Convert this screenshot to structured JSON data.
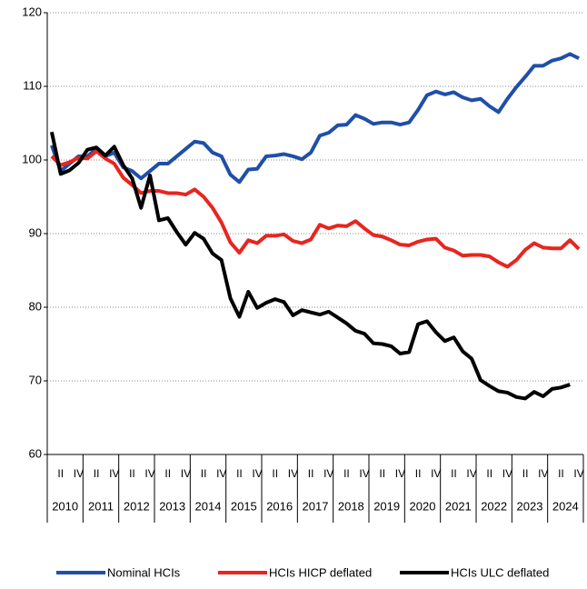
{
  "chart_data": {
    "type": "line",
    "categories": [
      null,
      "II",
      null,
      "IV",
      null,
      "II",
      null,
      "IV",
      null,
      "II",
      null,
      "IV",
      null,
      "II",
      null,
      "IV",
      null,
      "II",
      null,
      "IV",
      null,
      "II",
      null,
      "IV",
      null,
      "II",
      null,
      "IV",
      null,
      "II",
      null,
      "IV",
      null,
      "II",
      null,
      "IV",
      null,
      "II",
      null,
      "IV",
      null,
      "II",
      null,
      "IV",
      null,
      "II",
      null,
      "IV",
      null,
      "II",
      null,
      "IV",
      null,
      "II",
      null,
      "IV",
      null,
      "II",
      null,
      "IV"
    ],
    "years": [
      "2010",
      "2011",
      "2012",
      "2013",
      "2014",
      "2015",
      "2016",
      "2017",
      "2018",
      "2019",
      "2020",
      "2021",
      "2022",
      "2023",
      "2024"
    ],
    "series": [
      {
        "name": "Nominal HCIs",
        "color": "#1f4fa8",
        "values": [
          102,
          98.5,
          99.5,
          100.5,
          100.5,
          101.5,
          100.5,
          101,
          99,
          98.5,
          97.5,
          98.5,
          99.5,
          99.5,
          100.5,
          101.5,
          102.5,
          102.3,
          101,
          100.5,
          98,
          97,
          98.7,
          98.8,
          100.5,
          100.6,
          100.8,
          100.5,
          100.1,
          101,
          103.3,
          103.7,
          104.7,
          104.8,
          106.1,
          105.6,
          104.9,
          105.1,
          105.1,
          104.8,
          105.1,
          106.8,
          108.8,
          109.3,
          108.9,
          109.2,
          108.5,
          108.1,
          108.3,
          107.3,
          106.5,
          108.3,
          109.9,
          111.3,
          112.8,
          112.8,
          113.5,
          113.8,
          114.4,
          113.8
        ]
      },
      {
        "name": "HCIs HICP deflated",
        "color": "#e8251f",
        "values": [
          100.5,
          99.3,
          99.7,
          100.3,
          100.2,
          101.2,
          100.2,
          99.5,
          97.6,
          96.6,
          95.5,
          95.8,
          95.8,
          95.5,
          95.5,
          95.3,
          96,
          95,
          93.5,
          91.5,
          88.8,
          87.4,
          89.1,
          88.7,
          89.7,
          89.7,
          89.9,
          89,
          88.7,
          89.2,
          91.2,
          90.7,
          91.1,
          91,
          91.7,
          90.7,
          89.8,
          89.6,
          89.1,
          88.5,
          88.4,
          88.9,
          89.2,
          89.3,
          88.1,
          87.7,
          87,
          87.1,
          87.1,
          86.9,
          86.1,
          85.5,
          86.4,
          87.8,
          88.7,
          88.1,
          88,
          88,
          89.1,
          87.9
        ]
      },
      {
        "name": "HCIs ULC deflated",
        "color": "#000000",
        "values": [
          103.8,
          98.1,
          98.6,
          99.6,
          101.4,
          101.7,
          100.6,
          101.8,
          99.3,
          97.5,
          93.5,
          97.9,
          91.8,
          92.1,
          90.2,
          88.5,
          90.1,
          89.3,
          87.3,
          86.4,
          81.2,
          78.7,
          82.1,
          79.9,
          80.6,
          81.1,
          80.7,
          78.9,
          79.6,
          79.3,
          79,
          79.4,
          78.6,
          77.8,
          76.8,
          76.4,
          75.1,
          75,
          74.7,
          73.7,
          73.9,
          77.7,
          78.1,
          76.6,
          75.4,
          75.9,
          74,
          73,
          70.1,
          69.3,
          68.6,
          68.4,
          67.8,
          67.6,
          68.5,
          67.9,
          68.9,
          69.1,
          69.5,
          null
        ]
      }
    ],
    "ylim": [
      60,
      120
    ],
    "yticks": [
      60,
      70,
      80,
      90,
      100,
      110,
      120
    ],
    "grid": true
  }
}
